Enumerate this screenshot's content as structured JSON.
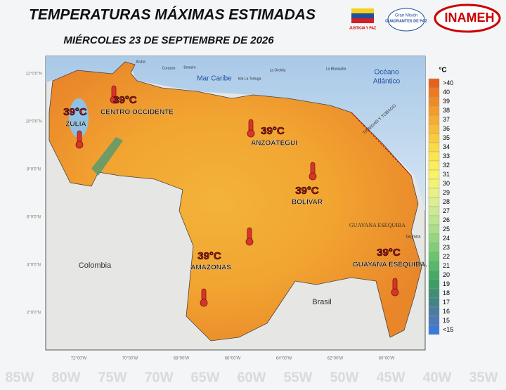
{
  "header": {
    "title": "TEMPERATURAS MÁXIMAS ESTIMADAS",
    "subtitle": "MIÉRCOLES 23 DE SEPTIEMBRE DE 2026",
    "logos": [
      "JUSTICIA Y PAZ",
      "Gran Misión",
      "CUADRANTES DE PAZ",
      "INAMEH"
    ]
  },
  "map": {
    "sea_label": "Mar Caribe",
    "ocean_label": [
      "Océano",
      "Atlántico"
    ],
    "countries": [
      "Colombia",
      "Brasil",
      "Guyana"
    ],
    "territory_label": "GUAYANA ESEQUIBA",
    "minor_labels": [
      "TRINIDAD Y TOBAGO",
      "Curazao",
      "Aruba",
      "Bonaire",
      "La Orchila",
      "La Blanquilla",
      "Isla La Tortuga"
    ],
    "lat_labels": [
      "12°0'0\"N",
      "10°0'0\"N",
      "8°0'0\"N",
      "6°0'0\"N",
      "4°0'0\"N",
      "2°0'0\"N"
    ],
    "lon_labels": [
      "72°00'W",
      "70°00'W",
      "68°00'W",
      "66°00'W",
      "64°00'W",
      "62°00'W",
      "60°00'W"
    ],
    "background_labels": [
      "85W",
      "80W",
      "75W",
      "70W",
      "65W",
      "60W",
      "55W",
      "50W",
      "45W",
      "40W",
      "35W"
    ]
  },
  "regions": [
    {
      "temperature": "39°C",
      "name": "ZULIA"
    },
    {
      "temperature": "39°C",
      "name": "CENTRO OCCIDENTE"
    },
    {
      "temperature": "39°C",
      "name": "ANZOÁTEGUI"
    },
    {
      "temperature": "39°C",
      "name": "BOLÍVAR"
    },
    {
      "temperature": "39°C",
      "name": "AMAZONAS"
    },
    {
      "temperature": "39°C",
      "name": "GUAYANA ESEQUIBA."
    }
  ],
  "legend": {
    "unit": "°C",
    "items": [
      {
        "label": ">40",
        "color": "#e8611a"
      },
      {
        "label": "40",
        "color": "#ec7a22"
      },
      {
        "label": "39",
        "color": "#f08a24"
      },
      {
        "label": "38",
        "color": "#f39c2a"
      },
      {
        "label": "37",
        "color": "#f5ac31"
      },
      {
        "label": "36",
        "color": "#f7bc38"
      },
      {
        "label": "35",
        "color": "#f9cc3f"
      },
      {
        "label": "34",
        "color": "#fadb47"
      },
      {
        "label": "33",
        "color": "#fbe650"
      },
      {
        "label": "32",
        "color": "#fbee5a"
      },
      {
        "label": "31",
        "color": "#f8f266"
      },
      {
        "label": "30",
        "color": "#f2f375"
      },
      {
        "label": "29",
        "color": "#e8f184"
      },
      {
        "label": "28",
        "color": "#dcee8f"
      },
      {
        "label": "27",
        "color": "#cdea92"
      },
      {
        "label": "26",
        "color": "#bde48e"
      },
      {
        "label": "25",
        "color": "#aade88"
      },
      {
        "label": "24",
        "color": "#96d680"
      },
      {
        "label": "23",
        "color": "#80ce78"
      },
      {
        "label": "22",
        "color": "#6ac46f"
      },
      {
        "label": "21",
        "color": "#56b868"
      },
      {
        "label": "20",
        "color": "#47aa64"
      },
      {
        "label": "19",
        "color": "#3f9c66"
      },
      {
        "label": "18",
        "color": "#3f8f74"
      },
      {
        "label": "17",
        "color": "#438487"
      },
      {
        "label": "16",
        "color": "#4a7ca0"
      },
      {
        "label": "15",
        "color": "#4e78b8"
      },
      {
        "label": "<15",
        "color": "#3a7ad8"
      }
    ]
  }
}
